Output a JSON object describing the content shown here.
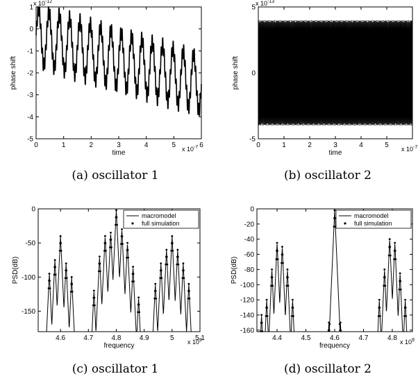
{
  "figure": {
    "captions": [
      "(a)  oscillator 1",
      "(b)  oscillator 2",
      "(c)  oscillator 1",
      "(d)  oscillator 2"
    ]
  },
  "chart_data": [
    {
      "type": "line",
      "xlabel": "time",
      "ylabel": "phase shift",
      "x_exponent_label": "x 10",
      "x_exponent": "-7",
      "y_exponent_label": "x 10",
      "y_exponent": "-12",
      "xlim": [
        0,
        6
      ],
      "ylim": [
        -5,
        1
      ],
      "xticks": [
        "0",
        "1",
        "2",
        "3",
        "4",
        "5",
        "6"
      ],
      "yticks": [
        "-5",
        "-4",
        "-3",
        "-2",
        "-1",
        "0",
        "1"
      ],
      "grid": false,
      "signal": {
        "offset_start": -0.3,
        "offset_end": -2.5,
        "slow_amplitude": 1.25,
        "slow_cycles": 16,
        "fast_amplitude": 0.35,
        "fast_cycles": 110
      },
      "line_color": "#000000"
    },
    {
      "type": "line",
      "xlabel": "time",
      "ylabel": "phase shift",
      "x_exponent_label": "x 10",
      "x_exponent": "-7",
      "y_exponent_label": "x 10",
      "y_exponent": "-13",
      "xlim": [
        0,
        6
      ],
      "ylim": [
        -5,
        5
      ],
      "xticks": [
        "0",
        "1",
        "2",
        "3",
        "4",
        "5"
      ],
      "yticks": [
        "-5",
        "0",
        "5"
      ],
      "grid": false,
      "signal": {
        "amplitude": 4.0,
        "cycles": 230
      },
      "line_color": "#000000"
    },
    {
      "type": "line",
      "xlabel": "frequency",
      "ylabel": "PSD(dB)",
      "x_exponent_label": "x 10",
      "x_exponent": "9",
      "xlim": [
        4.52,
        5.1
      ],
      "ylim": [
        -180,
        0
      ],
      "xticks": [
        "4.6",
        "4.7",
        "4.8",
        "4.9",
        "5",
        "5.1"
      ],
      "yticks": [
        "-150",
        "-100",
        "-50",
        "0"
      ],
      "ytick_values": [
        -150,
        -100,
        -50,
        0
      ],
      "xtick_values": [
        4.6,
        4.7,
        4.8,
        4.9,
        5.0,
        5.1
      ],
      "legend": {
        "position": "top-right",
        "entries": [
          "macromodel",
          "full simulation"
        ]
      },
      "series": [
        {
          "name": "macromodel",
          "style": "line",
          "peaks": [
            {
              "center": 4.6,
              "spacing": 0.02,
              "peak": -40,
              "sidelobes": [
                -95,
                -75,
                -40,
                -80,
                -100
              ]
            },
            {
              "center": 4.8,
              "spacing": 0.02,
              "peak": -2,
              "sidelobes": [
                -120,
                -70,
                -40,
                -35,
                -2,
                -30,
                -50,
                -85,
                -130
              ]
            },
            {
              "center": 5.0,
              "spacing": 0.02,
              "peak": -40,
              "sidelobes": [
                -110,
                -80,
                -60,
                -40,
                -60,
                -80,
                -110
              ]
            }
          ]
        },
        {
          "name": "full simulation",
          "style": "dots"
        }
      ],
      "grid": false
    },
    {
      "type": "line",
      "xlabel": "frequency",
      "ylabel": "PSD(dB)",
      "x_exponent_label": "x 10",
      "x_exponent": "9",
      "xlim": [
        4.33,
        4.87
      ],
      "ylim": [
        -162,
        0
      ],
      "xticks": [
        "4.4",
        "4.5",
        "4.6",
        "4.7",
        "4.8"
      ],
      "yticks": [
        "-160",
        "-140",
        "-120",
        "-100",
        "-80",
        "-60",
        "-40",
        "-20",
        "0"
      ],
      "ytick_values": [
        -160,
        -140,
        -120,
        -100,
        -80,
        -60,
        -40,
        -20,
        0
      ],
      "xtick_values": [
        4.4,
        4.5,
        4.6,
        4.7,
        4.8
      ],
      "legend": {
        "position": "top-right",
        "entries": [
          "macromodel",
          "full simulation"
        ]
      },
      "series": [
        {
          "name": "macromodel",
          "style": "line",
          "peaks": [
            {
              "center": 4.4,
              "spacing": 0.018,
              "peak": -45,
              "sidelobes": [
                -140,
                -120,
                -80,
                -45,
                -50,
                -80,
                -120
              ]
            },
            {
              "center": 4.6,
              "spacing": 0.02,
              "peak": -2,
              "sidelobes": [
                -150,
                -2,
                -150
              ]
            },
            {
              "center": 4.8,
              "spacing": 0.018,
              "peak": -40,
              "sidelobes": [
                -120,
                -80,
                -40,
                -45,
                -85,
                -120
              ]
            }
          ]
        },
        {
          "name": "full simulation",
          "style": "dots"
        }
      ],
      "grid": false
    }
  ]
}
